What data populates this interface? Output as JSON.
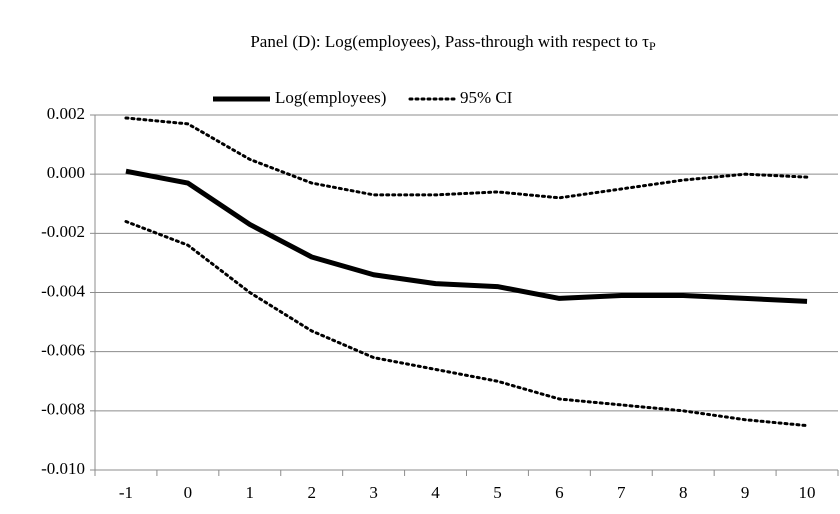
{
  "chart_data": {
    "type": "line",
    "title": "Panel (D): Log(employees), Pass-through with respect to τ",
    "title_subscript": "P",
    "categories": [
      "-1",
      "0",
      "1",
      "2",
      "3",
      "4",
      "5",
      "6",
      "7",
      "8",
      "9",
      "10"
    ],
    "series": [
      {
        "name": "Log(employees)",
        "color": "#000000",
        "style": "solid",
        "values": [
          0.0001,
          -0.0003,
          -0.0017,
          -0.0028,
          -0.0034,
          -0.0037,
          -0.0038,
          -0.0042,
          -0.0041,
          -0.0041,
          -0.0042,
          -0.0043
        ]
      },
      {
        "name": "95% CI",
        "color": "#000000",
        "style": "dotted",
        "upper": [
          0.0019,
          0.0017,
          0.0005,
          -0.0003,
          -0.0007,
          -0.0007,
          -0.0006,
          -0.0008,
          -0.0005,
          -0.0002,
          0.0,
          -0.0001
        ],
        "lower": [
          -0.0016,
          -0.0024,
          -0.004,
          -0.0053,
          -0.0062,
          -0.0066,
          -0.007,
          -0.0076,
          -0.0078,
          -0.008,
          -0.0083,
          -0.0085
        ]
      }
    ],
    "ylim": [
      -0.01,
      0.002
    ],
    "yticks": [
      {
        "value": -0.01,
        "label": "-0.010"
      },
      -0.008,
      -0.006,
      -0.004,
      -0.002,
      {
        "value": 0,
        "label": "0.000"
      },
      0.002
    ],
    "grid": true,
    "legend": "top"
  }
}
